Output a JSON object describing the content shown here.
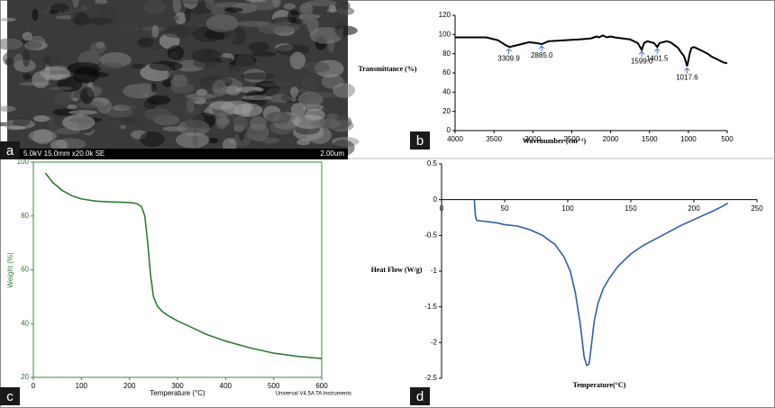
{
  "image_panel": {
    "panel_label": "a",
    "caption": "5.0kV 15.0mm x20.0k SE",
    "scale_bar": "2.00um"
  },
  "chart_data": [
    {
      "type": "line",
      "panel_label": "b",
      "y_label": "Transmittance (%)",
      "x_label": "Wavenumber (cm⁻¹)",
      "color": "#000000",
      "x": [
        4000,
        3800,
        3600,
        3450,
        3350,
        3300,
        3200,
        3050,
        2950,
        2885,
        2800,
        2600,
        2400,
        2250,
        2180,
        2150,
        2100,
        2050,
        2000,
        1950,
        1850,
        1750,
        1700,
        1650,
        1600,
        1570,
        1530,
        1480,
        1440,
        1400,
        1370,
        1330,
        1280,
        1230,
        1180,
        1130,
        1090,
        1060,
        1040,
        1017,
        1000,
        980,
        960,
        930,
        900,
        850,
        800,
        750,
        700,
        650,
        600,
        550,
        500
      ],
      "values": [
        97,
        97,
        97,
        94,
        89,
        87,
        89,
        92,
        91,
        90,
        93,
        94,
        95,
        96,
        98,
        97,
        99,
        97,
        98,
        97,
        96,
        95,
        93,
        91,
        84,
        91,
        93,
        92,
        91,
        87,
        91,
        92,
        93,
        92,
        89,
        86,
        81,
        78,
        74,
        67,
        73,
        81,
        86,
        87,
        86,
        84,
        82,
        80,
        77,
        75,
        73,
        71,
        70
      ],
      "xlim": [
        4000,
        500
      ],
      "xticks": [
        4000,
        3500,
        3000,
        2500,
        2000,
        1500,
        1000,
        500
      ],
      "ylim": [
        0,
        120
      ],
      "yticks": [
        0,
        20,
        40,
        60,
        80,
        100,
        120
      ],
      "annotations": [
        {
          "label": "3309.9",
          "x": 3309.9,
          "y": 87
        },
        {
          "label": "2885.0",
          "x": 2885.0,
          "y": 90
        },
        {
          "label": "1599.0",
          "x": 1599.0,
          "y": 84
        },
        {
          "label": "1401.5",
          "x": 1401.5,
          "y": 87
        },
        {
          "label": "1017.6",
          "x": 1017.6,
          "y": 67
        }
      ]
    },
    {
      "type": "line",
      "panel_label": "c",
      "y_label": "Weight (%)",
      "x_label": "Temperature (°C)",
      "footnote": "Universal V4.5A TA Instruments",
      "color": "#2e7d32",
      "x": [
        25,
        40,
        60,
        80,
        100,
        130,
        160,
        200,
        215,
        225,
        232,
        238,
        244,
        250,
        258,
        268,
        280,
        300,
        330,
        360,
        400,
        450,
        500,
        550,
        600
      ],
      "values": [
        96,
        92.5,
        89.5,
        87.5,
        86.3,
        85.5,
        85.2,
        85,
        84.6,
        83.5,
        80,
        70,
        58,
        50,
        46.5,
        44.5,
        43,
        41,
        38.5,
        36,
        33.5,
        31,
        29,
        27.8,
        27
      ],
      "xlim": [
        0,
        600
      ],
      "xticks": [
        0,
        100,
        200,
        300,
        400,
        500,
        600
      ],
      "ylim": [
        20,
        100
      ],
      "yticks": [
        20,
        40,
        60,
        80,
        100
      ]
    },
    {
      "type": "line",
      "panel_label": "d",
      "y_label": "Heat Flow (W/g)",
      "x_label": "Temperature(°C)",
      "color": "#2f5fa8",
      "x": [
        26,
        26.5,
        27,
        28,
        32,
        38,
        45,
        50,
        60,
        70,
        80,
        90,
        97,
        102,
        106,
        110,
        113,
        115,
        117,
        119,
        121,
        124,
        128,
        133,
        140,
        150,
        160,
        175,
        190,
        205,
        215,
        222,
        227
      ],
      "values": [
        0,
        -0.15,
        -0.25,
        -0.29,
        -0.3,
        -0.31,
        -0.33,
        -0.35,
        -0.37,
        -0.42,
        -0.5,
        -0.63,
        -0.8,
        -1.0,
        -1.3,
        -1.75,
        -2.2,
        -2.32,
        -2.3,
        -2.0,
        -1.7,
        -1.45,
        -1.25,
        -1.1,
        -0.93,
        -0.76,
        -0.64,
        -0.5,
        -0.36,
        -0.24,
        -0.16,
        -0.1,
        -0.05
      ],
      "xlim": [
        0,
        250
      ],
      "xticks": [
        0,
        50,
        100,
        150,
        200,
        250
      ],
      "ylim": [
        -2.5,
        0.5
      ],
      "yticks": [
        0.5,
        0,
        -0.5,
        -1,
        -1.5,
        -2,
        -2.5
      ]
    }
  ]
}
